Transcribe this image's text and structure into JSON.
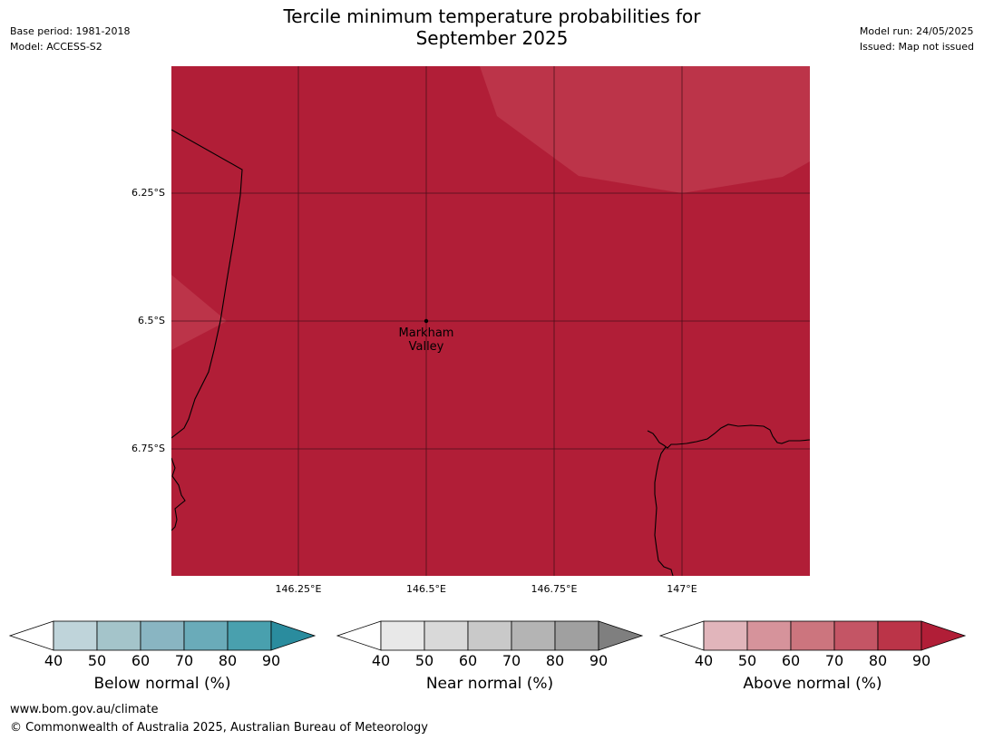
{
  "header": {
    "title_line1": "Tercile minimum temperature probabilities for",
    "title_line2": "September 2025",
    "base_period": "Base period: 1981-2018",
    "model": "Model: ACCESS-S2",
    "model_run": "Model run: 24/05/2025",
    "issued": "Issued: Map not issued"
  },
  "map": {
    "latitude_ticks": [
      "6.25°S",
      "6.5°S",
      "6.75°S"
    ],
    "longitude_ticks": [
      "146.25°E",
      "146.5°E",
      "146.75°E",
      "147°E"
    ],
    "places": [
      {
        "name_line1": "Markham",
        "name_line2": "Valley"
      }
    ],
    "fill_color": "#b11e37",
    "light_patch_color": "#bc3449"
  },
  "legends": [
    {
      "title": "Below normal (%)",
      "ticks": [
        "40",
        "50",
        "60",
        "70",
        "80",
        "90"
      ],
      "colors": [
        "#bfd4da",
        "#a4c4ca",
        "#89b5c2",
        "#6aabb9",
        "#49a0ae"
      ],
      "extend_color": "#2a8c9e"
    },
    {
      "title": "Near normal (%)",
      "ticks": [
        "40",
        "50",
        "60",
        "70",
        "80",
        "90"
      ],
      "colors": [
        "#e8e8e8",
        "#d9d9d9",
        "#c9c9c9",
        "#b4b4b4",
        "#a0a0a0"
      ],
      "extend_color": "#7f7f7f"
    },
    {
      "title": "Above normal (%)",
      "ticks": [
        "40",
        "50",
        "60",
        "70",
        "80",
        "90"
      ],
      "colors": [
        "#e1b5bb",
        "#d6939b",
        "#cc757e",
        "#c45565",
        "#bb3448"
      ],
      "extend_color": "#b11e37"
    }
  ],
  "footer": {
    "url": "www.bom.gov.au/climate",
    "copyright": "© Commonwealth of Australia 2025, Australian Bureau of Meteorology"
  }
}
